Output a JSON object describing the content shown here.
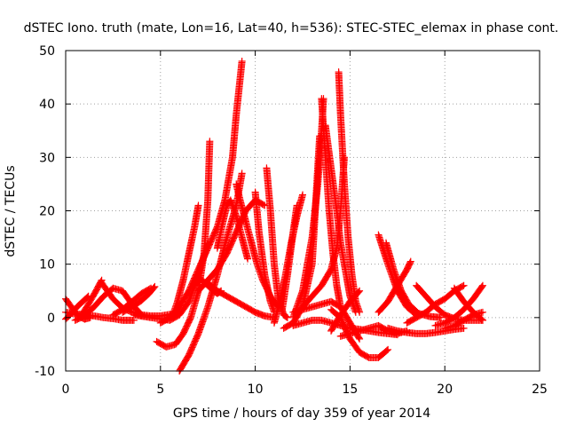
{
  "chart_data": {
    "type": "scatter",
    "title": "dSTEC Iono. truth (mate, Lon=16, Lat=40, h=536): STEC-STEC_elemax in phase cont.",
    "xlabel": "GPS time / hours of day 359 of year 2014",
    "ylabel": "dSTEC  / TECUs",
    "xlim": [
      0,
      25
    ],
    "ylim": [
      -10,
      50
    ],
    "xticks": [
      0,
      5,
      10,
      15,
      20,
      25
    ],
    "yticks": [
      -10,
      0,
      10,
      20,
      30,
      40,
      50
    ],
    "grid": true,
    "marker": "+",
    "color": "#ff0000",
    "series": [
      {
        "x": [
          0.0,
          0.3,
          0.6,
          1.0,
          1.3
        ],
        "y": [
          3.5,
          2.0,
          0.5,
          -0.3,
          0.0
        ]
      },
      {
        "x": [
          0.0,
          0.3,
          0.6,
          0.9,
          1.2
        ],
        "y": [
          -0.3,
          0.8,
          2.0,
          3.0,
          4.0
        ]
      },
      {
        "x": [
          0.0,
          0.5,
          1.0,
          1.5,
          2.0,
          2.5,
          3.0,
          3.6
        ],
        "y": [
          1.0,
          0.7,
          0.5,
          0.3,
          0.0,
          -0.2,
          -0.5,
          -0.5
        ]
      },
      {
        "x": [
          0.5,
          1.0,
          1.5,
          2.0,
          2.5,
          3.0,
          3.5,
          4.0
        ],
        "y": [
          -0.5,
          0.3,
          2.0,
          4.0,
          5.5,
          5.0,
          2.5,
          0.5
        ]
      },
      {
        "x": [
          0.8,
          1.2,
          1.6,
          1.9
        ],
        "y": [
          0.2,
          2.5,
          5.0,
          7.0
        ]
      },
      {
        "x": [
          1.9,
          2.5,
          3.0,
          3.5,
          4.0,
          4.5,
          5.0,
          5.5,
          6.0
        ],
        "y": [
          6.5,
          3.5,
          1.8,
          1.0,
          0.5,
          0.3,
          0.3,
          0.6,
          1.0
        ]
      },
      {
        "x": [
          2.5,
          3.0,
          3.5,
          4.0,
          4.5
        ],
        "y": [
          0.5,
          1.5,
          3.0,
          4.5,
          5.5
        ]
      },
      {
        "x": [
          3.0,
          3.5,
          4.0,
          4.4,
          4.7
        ],
        "y": [
          1.0,
          2.0,
          3.2,
          4.5,
          5.8
        ]
      },
      {
        "x": [
          3.6,
          4.5,
          5.5,
          6.0,
          6.5,
          7.0,
          7.5
        ],
        "y": [
          0.5,
          0.0,
          -0.5,
          0.5,
          3.0,
          8.0,
          14.0
        ]
      },
      {
        "x": [
          4.8,
          5.3,
          5.8,
          6.2,
          6.6,
          7.0,
          7.3,
          7.5,
          7.6
        ],
        "y": [
          -4.5,
          -5.5,
          -5.0,
          -3.0,
          0.0,
          5.0,
          12.0,
          22.0,
          33.0
        ]
      },
      {
        "x": [
          5.0,
          5.5,
          6.0,
          6.5,
          7.0,
          7.5,
          8.0,
          8.4,
          8.8,
          9.0,
          9.3
        ],
        "y": [
          -1.0,
          0.0,
          2.0,
          5.0,
          9.0,
          13.0,
          17.0,
          22.0,
          30.0,
          38.0,
          48.0
        ]
      },
      {
        "x": [
          5.6,
          5.9,
          6.2,
          6.5,
          6.8,
          7.0
        ],
        "y": [
          0.0,
          3.0,
          7.0,
          12.0,
          17.0,
          21.0
        ]
      },
      {
        "x": [
          6.0,
          6.5,
          7.0,
          7.5,
          8.0,
          8.5,
          9.0,
          9.3
        ],
        "y": [
          -10.0,
          -7.0,
          -3.0,
          2.0,
          8.0,
          15.0,
          21.0,
          27.0
        ]
      },
      {
        "x": [
          6.8,
          7.0,
          7.2,
          7.5,
          7.8,
          8.0,
          8.2
        ],
        "y": [
          6.0,
          7.5,
          7.0,
          6.0,
          5.0,
          4.5,
          5.0
        ]
      },
      {
        "x": [
          7.0,
          7.5,
          8.0,
          8.5,
          9.0,
          9.5,
          10.0,
          10.5
        ],
        "y": [
          5.0,
          7.0,
          9.0,
          12.0,
          16.0,
          20.0,
          22.0,
          21.0
        ]
      },
      {
        "x": [
          7.5,
          8.0,
          8.5,
          9.0,
          9.5,
          10.0,
          10.5,
          11.0
        ],
        "y": [
          6.5,
          5.0,
          4.0,
          3.0,
          2.0,
          1.0,
          0.3,
          0.0
        ]
      },
      {
        "x": [
          8.0,
          8.3,
          8.5,
          8.7,
          9.0,
          9.3,
          9.6
        ],
        "y": [
          13.0,
          18.0,
          21.0,
          22.0,
          19.0,
          15.0,
          11.0
        ]
      },
      {
        "x": [
          9.0,
          9.2,
          9.5,
          9.8,
          10.1,
          10.4,
          10.8,
          11.2
        ],
        "y": [
          25.0,
          22.0,
          18.0,
          14.0,
          10.0,
          7.0,
          4.0,
          2.0
        ]
      },
      {
        "x": [
          10.0,
          10.2,
          10.5,
          10.8,
          11.0
        ],
        "y": [
          23.5,
          16.0,
          8.0,
          3.0,
          1.0
        ]
      },
      {
        "x": [
          10.6,
          10.8,
          11.0,
          11.2,
          11.5,
          11.7
        ],
        "y": [
          28.0,
          20.0,
          10.0,
          4.0,
          0.5,
          0.0
        ]
      },
      {
        "x": [
          11.0,
          11.3,
          11.6,
          11.9,
          12.2,
          12.5
        ],
        "y": [
          -1.0,
          3.0,
          8.0,
          14.0,
          19.0,
          23.0
        ]
      },
      {
        "x": [
          11.4,
          11.7,
          12.0,
          12.2
        ],
        "y": [
          1.0,
          8.0,
          16.0,
          21.0
        ]
      },
      {
        "x": [
          11.5,
          12.0,
          12.5,
          13.0,
          13.2,
          13.4
        ],
        "y": [
          -2.0,
          -1.0,
          2.0,
          10.0,
          22.0,
          34.0
        ]
      },
      {
        "x": [
          12.0,
          12.5,
          13.0,
          13.3,
          13.5,
          13.6
        ],
        "y": [
          0.0,
          5.0,
          15.0,
          25.0,
          35.0,
          41.0
        ]
      },
      {
        "x": [
          13.5,
          13.7,
          13.9,
          14.1,
          14.3,
          14.5
        ],
        "y": [
          41.0,
          30.0,
          20.0,
          12.0,
          6.0,
          2.0
        ]
      },
      {
        "x": [
          13.7,
          14.0,
          14.3,
          14.5,
          14.8,
          15.0,
          15.3
        ],
        "y": [
          36.0,
          28.0,
          20.0,
          14.0,
          8.0,
          4.0,
          1.0
        ]
      },
      {
        "x": [
          12.5,
          13.0,
          13.5,
          14.0,
          14.3,
          14.5,
          14.7
        ],
        "y": [
          2.0,
          4.0,
          6.0,
          9.0,
          13.0,
          20.0,
          30.0
        ]
      },
      {
        "x": [
          14.4,
          14.5,
          14.7,
          14.9,
          15.1,
          15.3,
          15.5
        ],
        "y": [
          46.0,
          38.0,
          25.0,
          15.0,
          8.0,
          3.0,
          1.0
        ]
      },
      {
        "x": [
          12.0,
          12.5,
          13.0,
          13.5,
          14.0,
          14.5,
          15.0,
          15.5
        ],
        "y": [
          1.0,
          1.5,
          2.0,
          2.5,
          3.0,
          2.0,
          -1.0,
          -4.0
        ]
      },
      {
        "x": [
          14.0,
          14.5,
          15.0,
          15.5,
          16.0,
          16.5,
          17.0
        ],
        "y": [
          1.5,
          0.0,
          -4.0,
          -6.5,
          -7.5,
          -7.5,
          -6.0
        ]
      },
      {
        "x": [
          14.5,
          15.0,
          15.5,
          16.0,
          16.5,
          17.0,
          17.5,
          18.0
        ],
        "y": [
          -3.5,
          -3.0,
          -2.5,
          -2.0,
          -1.5,
          -2.5,
          -3.0,
          -2.5
        ]
      },
      {
        "x": [
          12.0,
          12.5,
          13.0,
          13.5,
          14.0,
          14.5,
          15.0,
          15.5,
          16.0,
          16.5,
          17.0,
          17.5
        ],
        "y": [
          -1.5,
          -1.0,
          -0.5,
          -0.5,
          -1.0,
          -1.5,
          -2.0,
          -2.2,
          -2.5,
          -2.8,
          -3.0,
          -3.2
        ]
      },
      {
        "x": [
          14.0,
          14.5,
          15.0,
          15.5
        ],
        "y": [
          -2.5,
          0.5,
          3.0,
          5.0
        ]
      },
      {
        "x": [
          16.5,
          17.0,
          17.5,
          18.0,
          18.5
        ],
        "y": [
          15.5,
          10.0,
          5.0,
          2.0,
          0.5
        ]
      },
      {
        "x": [
          16.9,
          17.3,
          17.7,
          18.1,
          18.6,
          19.2,
          19.8
        ],
        "y": [
          14.0,
          9.0,
          5.0,
          2.5,
          0.8,
          0.2,
          0.0
        ]
      },
      {
        "x": [
          17.0,
          17.5,
          18.0,
          18.5,
          19.0,
          19.5,
          20.0,
          20.5,
          21.0
        ],
        "y": [
          -2.0,
          -2.5,
          -2.8,
          -3.0,
          -3.0,
          -2.8,
          -2.5,
          -2.2,
          -2.0
        ]
      },
      {
        "x": [
          16.5,
          17.0,
          17.5,
          18.0,
          18.2
        ],
        "y": [
          1.0,
          3.0,
          6.0,
          9.0,
          10.5
        ]
      },
      {
        "x": [
          18.5,
          19.0,
          19.5,
          20.0,
          20.5,
          21.0,
          21.5,
          22.0
        ],
        "y": [
          6.0,
          4.0,
          2.0,
          0.5,
          -0.2,
          -0.5,
          -0.5,
          -0.5
        ]
      },
      {
        "x": [
          18.0,
          18.5,
          19.0,
          19.5,
          20.0,
          20.5,
          21.0
        ],
        "y": [
          -1.0,
          0.0,
          1.0,
          2.5,
          3.5,
          5.0,
          6.0
        ]
      },
      {
        "x": [
          19.5,
          20.0,
          20.5,
          21.0,
          21.5,
          22.0
        ],
        "y": [
          -1.5,
          -1.0,
          0.0,
          1.5,
          3.5,
          6.0
        ]
      },
      {
        "x": [
          20.5,
          21.0,
          21.5,
          22.0
        ],
        "y": [
          5.5,
          3.0,
          1.0,
          -0.5
        ]
      },
      {
        "x": [
          20.0,
          20.5,
          21.0,
          21.5,
          22.0
        ],
        "y": [
          -2.0,
          -1.5,
          -0.5,
          0.5,
          1.0
        ]
      }
    ]
  }
}
